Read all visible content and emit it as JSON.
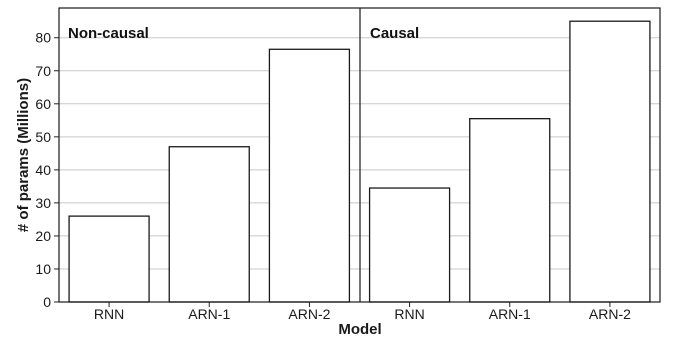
{
  "chart_data": {
    "type": "bar",
    "xlabel": "Model",
    "ylabel": "# of params (Millions)",
    "ylim": [
      0,
      89
    ],
    "yticks": [
      0,
      10,
      20,
      30,
      40,
      50,
      60,
      70,
      80
    ],
    "grid": "horizontal",
    "panels": [
      {
        "title": "Non-causal",
        "categories": [
          "RNN",
          "ARN-1",
          "ARN-2"
        ],
        "values": [
          26,
          47,
          76.5
        ]
      },
      {
        "title": "Causal",
        "categories": [
          "RNN",
          "ARN-1",
          "ARN-2"
        ],
        "values": [
          34.5,
          55.5,
          85
        ]
      }
    ]
  }
}
